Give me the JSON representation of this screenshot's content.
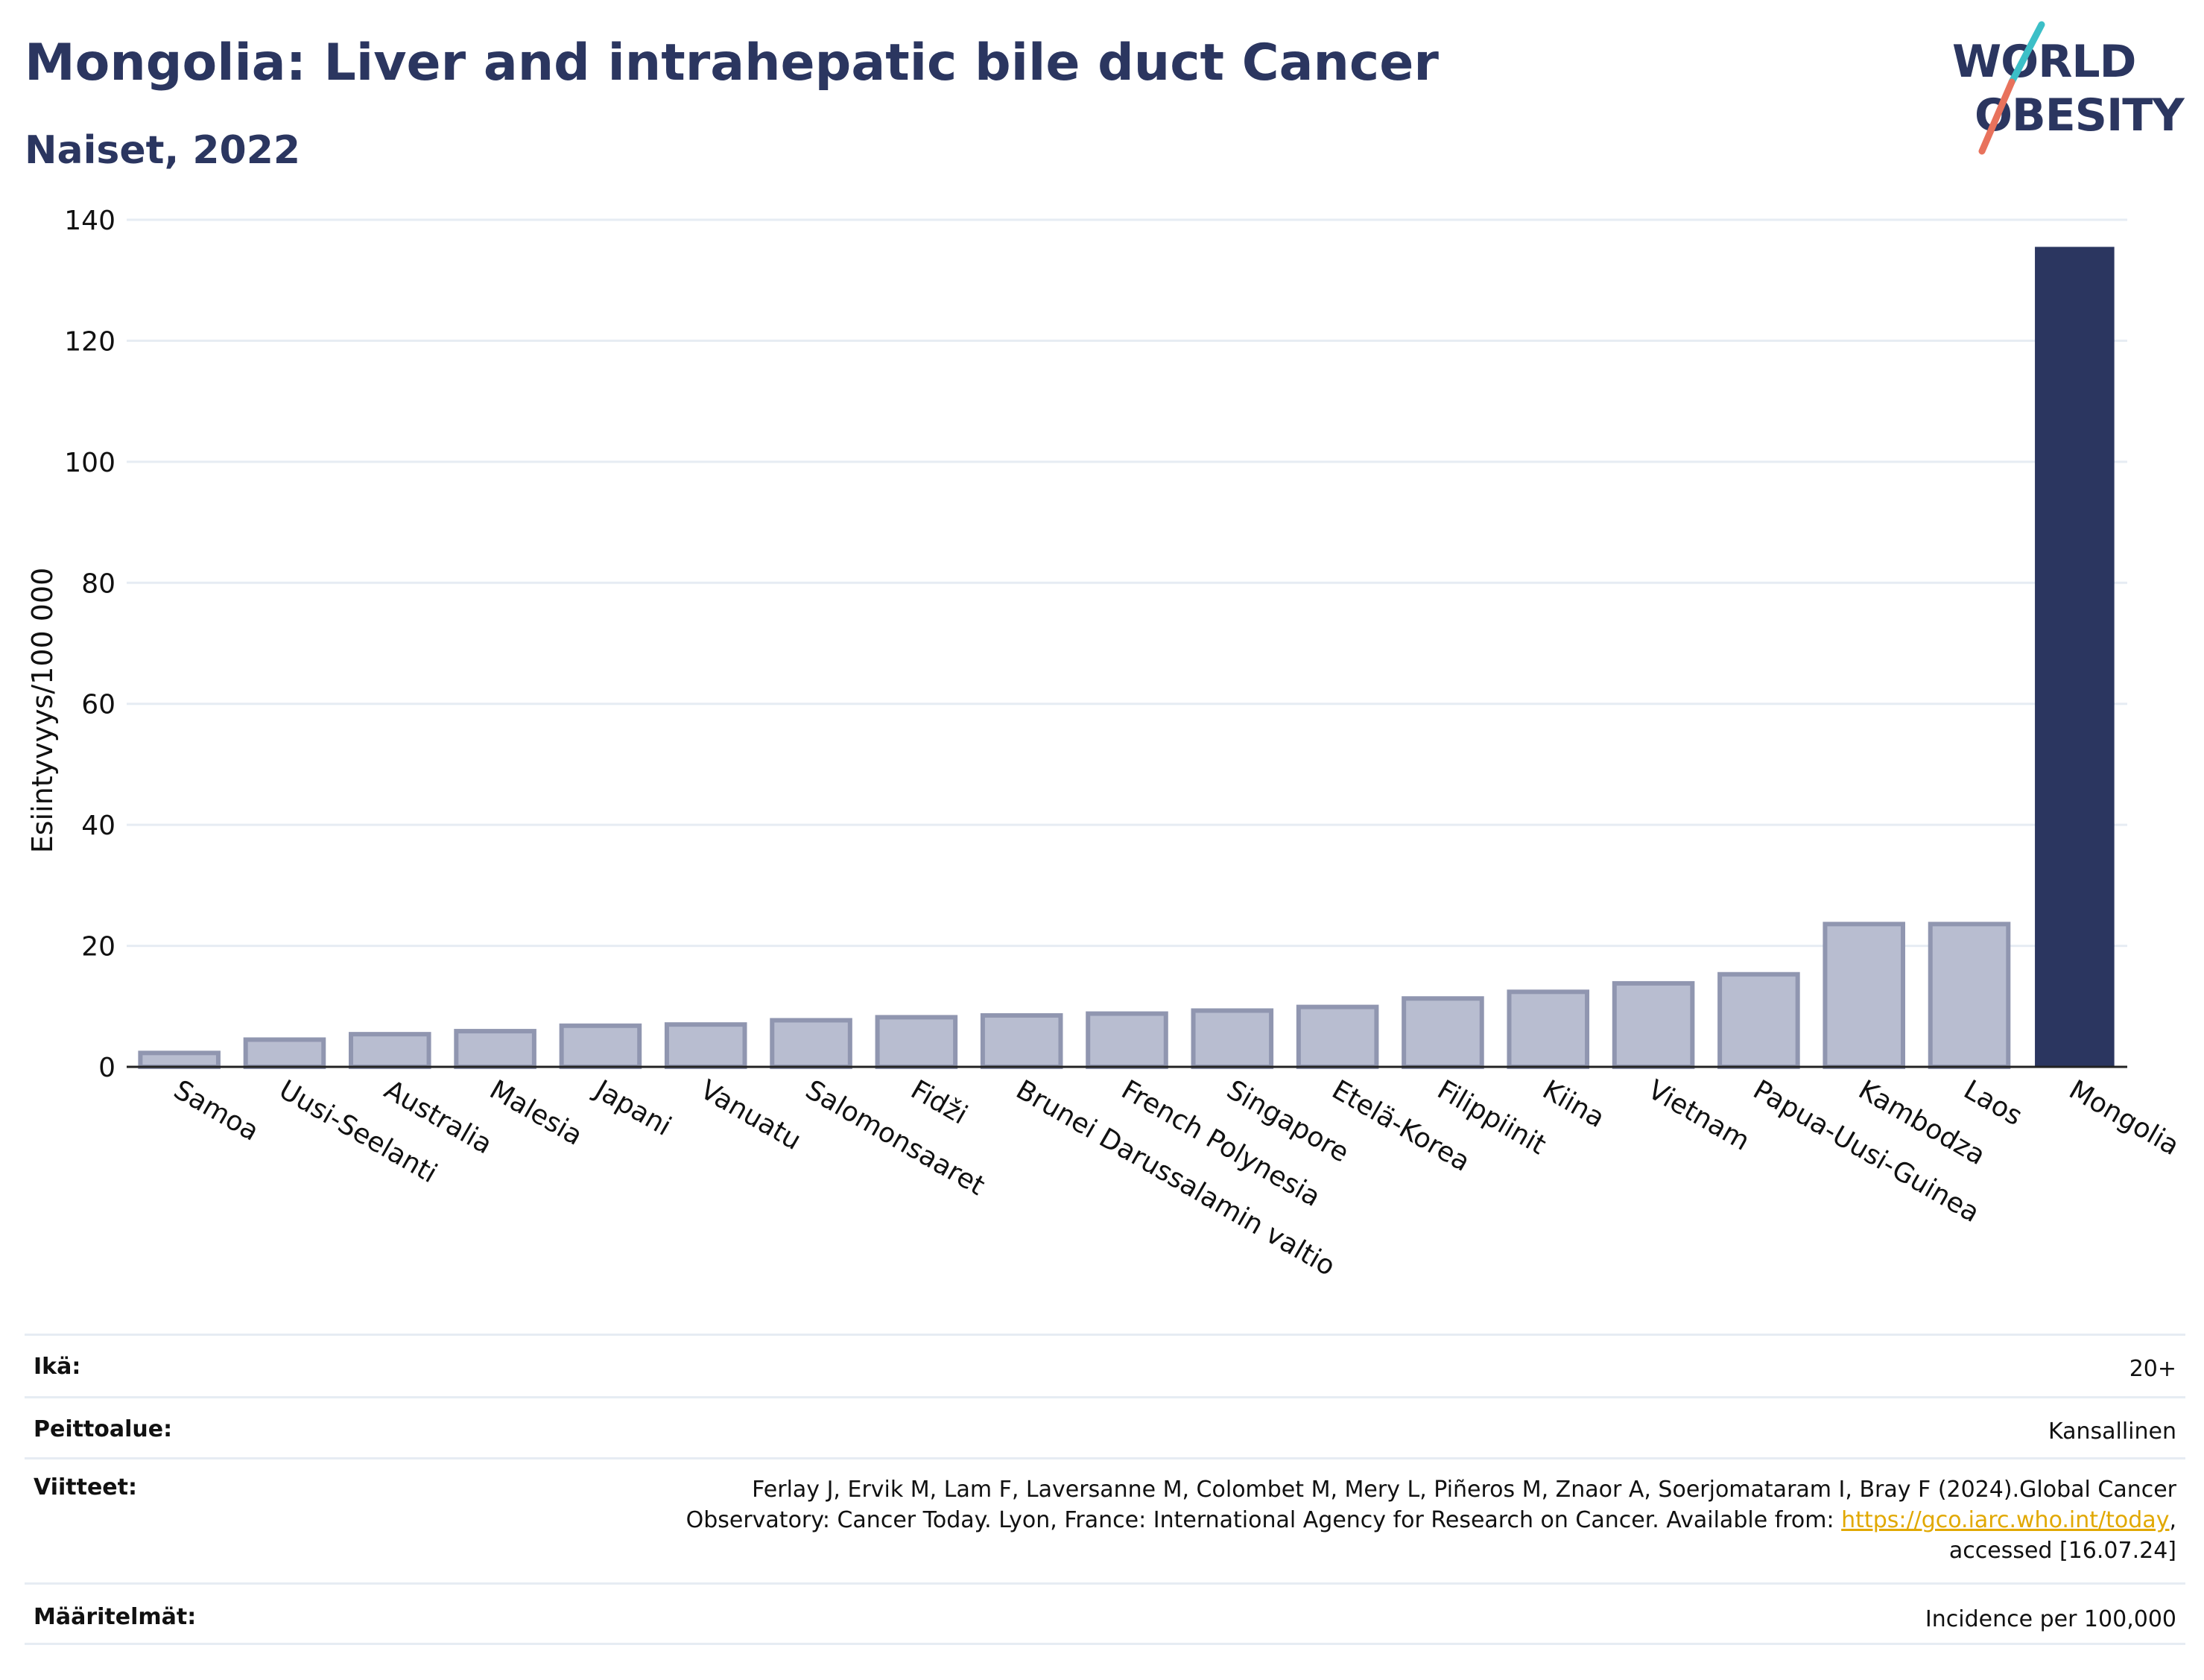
{
  "header": {
    "title": "Mongolia: Liver and intrahepatic bile duct Cancer",
    "subtitle": "Naiset, 2022"
  },
  "logo": {
    "line1": "WORLD",
    "line2": "OBESITY",
    "colors": {
      "text": "#2b3660",
      "slash_top": "#3cbfc7",
      "slash_bottom": "#e8725c"
    }
  },
  "colors": {
    "bar_default": "#b8bdd0",
    "bar_default_edge": "#9096b0",
    "bar_highlight": "#2b3660",
    "grid": "#e6ecf3",
    "axis": "#222222"
  },
  "chart_data": {
    "type": "bar",
    "title": "Mongolia: Liver and intrahepatic bile duct Cancer",
    "subtitle": "Naiset, 2022",
    "xlabel": "",
    "ylabel": "Esiintyvyys/100 000",
    "ylim": [
      0,
      140
    ],
    "yticks": [
      0,
      20,
      40,
      60,
      80,
      100,
      120,
      140
    ],
    "grid": true,
    "highlight": "Mongolia",
    "categories": [
      "Samoa",
      "Uusi-Seelanti",
      "Australia",
      "Malesia",
      "Japani",
      "Vanuatu",
      "Salomonsaaret",
      "Fidži",
      "Brunei Darussalamin valtio",
      "French Polynesia",
      "Singapore",
      "Etelä-Korea",
      "Filippiinit",
      "Kiina",
      "Vietnam",
      "Papua-Uusi-Guinea",
      "Kambodza",
      "Laos",
      "Mongolia"
    ],
    "values": [
      2.3,
      4.5,
      5.4,
      5.9,
      6.8,
      7.0,
      7.7,
      8.2,
      8.5,
      8.8,
      9.3,
      9.9,
      11.3,
      12.4,
      13.8,
      15.3,
      23.6,
      23.6,
      135.4
    ]
  },
  "info": {
    "rows": [
      {
        "key": "Ikä:",
        "value": "20+"
      },
      {
        "key": "Peittoalue:",
        "value": "Kansallinen"
      },
      {
        "key": "Viitteet:",
        "value_pre": "Ferlay J, Ervik M, Lam F, Laversanne M, Colombet M, Mery L, Piñeros M, Znaor A, Soerjomataram I, Bray F (2024).Global Cancer Observatory: Cancer Today. Lyon, France: International Agency for Research on Cancer. Available from: ",
        "link": "https://gco.iarc.who.int/today",
        "value_post": ", accessed [16.07.24]"
      },
      {
        "key": "Määritelmät:",
        "value": "Incidence per 100,000"
      }
    ]
  }
}
